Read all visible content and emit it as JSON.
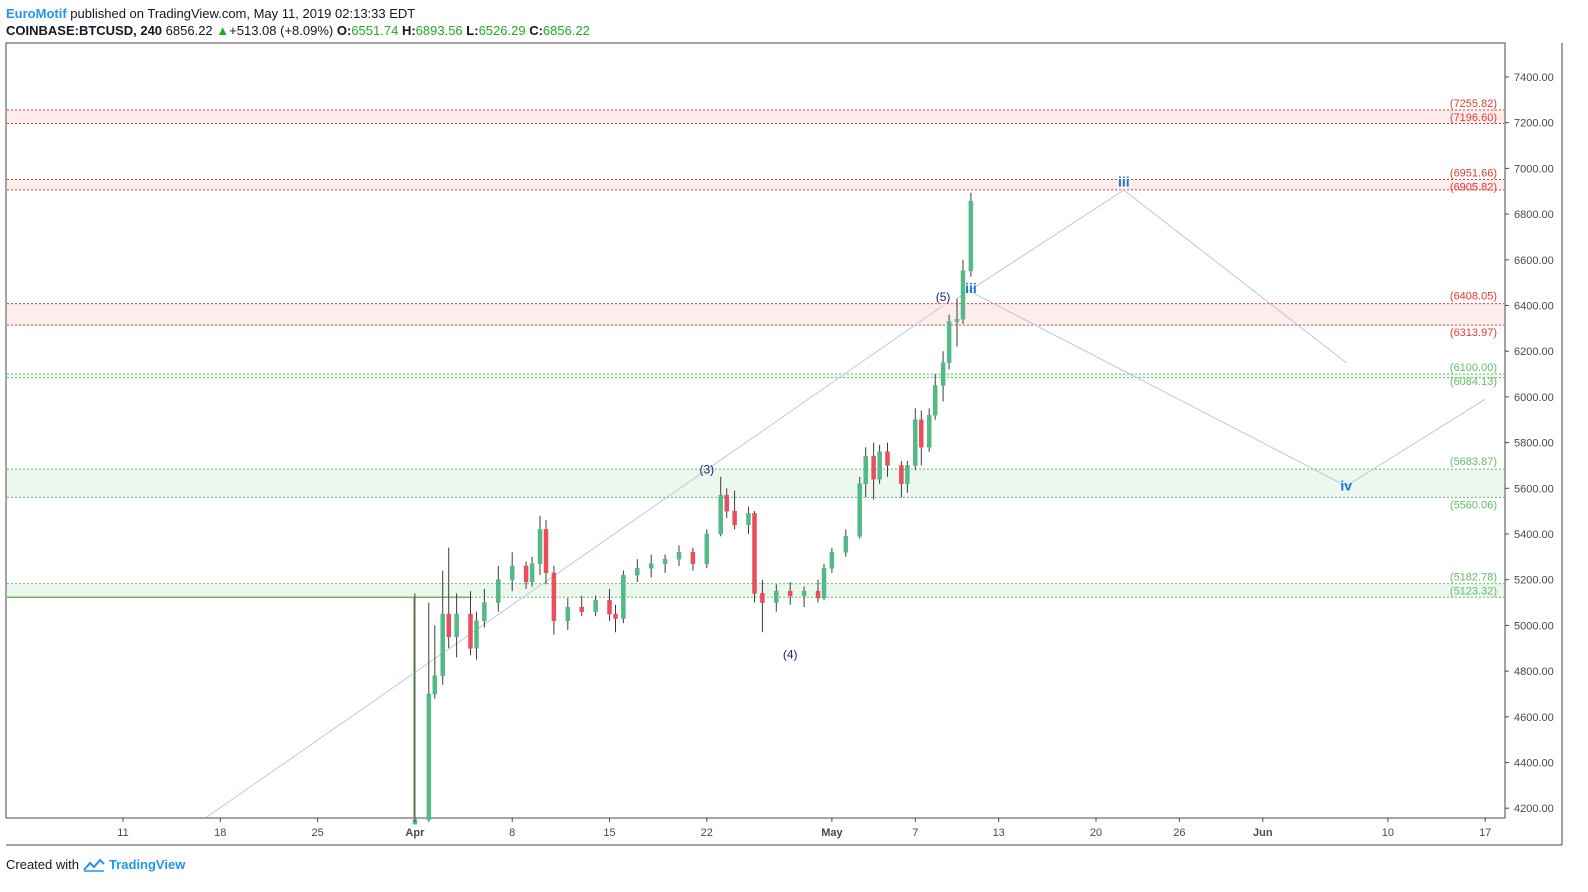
{
  "header": {
    "author": "EuroMotif",
    "published_text": "published on TradingView.com, May 11, 2019 02:13:33 EDT"
  },
  "quote": {
    "symbol": "COINBASE:BTCUSD, 240",
    "last": "6856.22",
    "change": "+513.08 (+8.09%)",
    "o_label": "O:",
    "o": "6551.74",
    "h_label": "H:",
    "h": "6893.56",
    "l_label": "L:",
    "l": "6526.29",
    "c_label": "C:",
    "c": "6856.22"
  },
  "footer": {
    "created_with": "Created with",
    "logo": "TradingView"
  },
  "colors": {
    "up": "#53b987",
    "down": "#eb4d5c",
    "resistance": "#e53935",
    "support": "#66bb6a",
    "wave_minor": "#1a237e",
    "wave_major": "#1976d2",
    "projection": "#b7c9e0"
  },
  "chart_data": {
    "type": "candlestick",
    "symbol": "COINBASE:BTCUSD",
    "interval": "240",
    "xaxis_ticks": [
      "11",
      "18",
      "25",
      "Apr",
      "8",
      "15",
      "22",
      "May",
      "7",
      "13",
      "20",
      "26",
      "Jun",
      "10",
      "17"
    ],
    "yaxis_ticks": [
      "7400.00",
      "7200.00",
      "7000.00",
      "6800.00",
      "6600.00",
      "6400.00",
      "6200.00",
      "6000.00",
      "5800.00",
      "5600.00",
      "5400.00",
      "5200.00",
      "5000.00",
      "4800.00",
      "4600.00",
      "4400.00",
      "4200.00"
    ],
    "ylim": [
      4160,
      7560
    ],
    "resistance_zones": [
      {
        "top": 7255.82,
        "bottom": 7196.6,
        "labels": [
          "(7255.82)",
          "(7196.60)"
        ]
      },
      {
        "top": 6951.66,
        "bottom": 6905.82,
        "labels": [
          "(6951.66)",
          "(6905.82)"
        ]
      },
      {
        "top": 6408.05,
        "bottom": 6313.97,
        "labels": [
          "(6408.05)",
          "(6313.97)"
        ]
      }
    ],
    "support_zones": [
      {
        "top": 6100.0,
        "bottom": 6084.13,
        "labels": [
          "(6100.00)",
          "(6084.13)"
        ]
      },
      {
        "top": 5683.87,
        "bottom": 5560.06,
        "labels": [
          "(5683.87)",
          "(5560.06)"
        ]
      },
      {
        "top": 5182.78,
        "bottom": 5123.32,
        "labels": [
          "(5182.78)",
          "(5123.32)"
        ]
      }
    ],
    "wave_labels_minor": [
      {
        "text": "(3)",
        "date": "2019-04-22",
        "price": 5665
      },
      {
        "text": "(4)",
        "date": "2019-04-28",
        "price": 4855
      },
      {
        "text": "(5)",
        "date": "2019-05-09",
        "price": 6420
      }
    ],
    "wave_labels_major": [
      {
        "text": "iii",
        "date": "2019-05-11",
        "price": 6455
      },
      {
        "text": "iii",
        "date": "2019-05-22",
        "price": 6920
      },
      {
        "text": "iv",
        "date": "2019-06-07",
        "price": 5590
      }
    ],
    "projection_path": [
      {
        "date": "2019-05-10",
        "price": 6430
      },
      {
        "date": "2019-05-22",
        "price": 6905
      },
      {
        "date": "2019-06-07",
        "price": 6150
      }
    ],
    "projection_path_2": [
      {
        "date": "2019-05-11",
        "price": 6460
      },
      {
        "date": "2019-06-07",
        "price": 5610
      },
      {
        "date": "2019-06-17",
        "price": 5990
      }
    ],
    "channel_line": [
      {
        "date": "2019-03-17",
        "price": 4160
      },
      {
        "date": "2019-05-09",
        "price": 6400
      }
    ],
    "candles": [
      {
        "date": "2019-04-01",
        "open": 4130,
        "high": 5140,
        "low": 4130,
        "close": 4150
      },
      {
        "date": "2019-04-02",
        "open": 4150,
        "high": 5100,
        "low": 4140,
        "close": 4700
      },
      {
        "date": "2019-04-02",
        "open": 4700,
        "high": 5000,
        "low": 4680,
        "close": 4780
      },
      {
        "date": "2019-04-03",
        "open": 4780,
        "high": 5240,
        "low": 4740,
        "close": 5050
      },
      {
        "date": "2019-04-03",
        "open": 5050,
        "high": 5340,
        "low": 4900,
        "close": 4950
      },
      {
        "date": "2019-04-04",
        "open": 4950,
        "high": 5140,
        "low": 4860,
        "close": 5050
      },
      {
        "date": "2019-04-05",
        "open": 5050,
        "high": 5150,
        "low": 4870,
        "close": 4900
      },
      {
        "date": "2019-04-05",
        "open": 4900,
        "high": 5060,
        "low": 4850,
        "close": 5020
      },
      {
        "date": "2019-04-06",
        "open": 5020,
        "high": 5160,
        "low": 4990,
        "close": 5100
      },
      {
        "date": "2019-04-07",
        "open": 5100,
        "high": 5260,
        "low": 5060,
        "close": 5200
      },
      {
        "date": "2019-04-08",
        "open": 5200,
        "high": 5320,
        "low": 5150,
        "close": 5260
      },
      {
        "date": "2019-04-09",
        "open": 5260,
        "high": 5280,
        "low": 5160,
        "close": 5190
      },
      {
        "date": "2019-04-09",
        "open": 5190,
        "high": 5300,
        "low": 5170,
        "close": 5270
      },
      {
        "date": "2019-04-10",
        "open": 5270,
        "high": 5480,
        "low": 5220,
        "close": 5420
      },
      {
        "date": "2019-04-10",
        "open": 5420,
        "high": 5460,
        "low": 5180,
        "close": 5230
      },
      {
        "date": "2019-04-11",
        "open": 5230,
        "high": 5260,
        "low": 4960,
        "close": 5020
      },
      {
        "date": "2019-04-12",
        "open": 5020,
        "high": 5120,
        "low": 4980,
        "close": 5080
      },
      {
        "date": "2019-04-13",
        "open": 5080,
        "high": 5130,
        "low": 5040,
        "close": 5060
      },
      {
        "date": "2019-04-14",
        "open": 5060,
        "high": 5130,
        "low": 5040,
        "close": 5110
      },
      {
        "date": "2019-04-15",
        "open": 5110,
        "high": 5160,
        "low": 5020,
        "close": 5050
      },
      {
        "date": "2019-04-15",
        "open": 5050,
        "high": 5090,
        "low": 4970,
        "close": 5030
      },
      {
        "date": "2019-04-16",
        "open": 5030,
        "high": 5240,
        "low": 5010,
        "close": 5220
      },
      {
        "date": "2019-04-17",
        "open": 5220,
        "high": 5290,
        "low": 5190,
        "close": 5250
      },
      {
        "date": "2019-04-18",
        "open": 5250,
        "high": 5310,
        "low": 5210,
        "close": 5270
      },
      {
        "date": "2019-04-19",
        "open": 5270,
        "high": 5310,
        "low": 5230,
        "close": 5290
      },
      {
        "date": "2019-04-20",
        "open": 5290,
        "high": 5350,
        "low": 5260,
        "close": 5320
      },
      {
        "date": "2019-04-21",
        "open": 5320,
        "high": 5340,
        "low": 5240,
        "close": 5270
      },
      {
        "date": "2019-04-22",
        "open": 5270,
        "high": 5420,
        "low": 5250,
        "close": 5400
      },
      {
        "date": "2019-04-23",
        "open": 5400,
        "high": 5650,
        "low": 5390,
        "close": 5570
      },
      {
        "date": "2019-04-23",
        "open": 5570,
        "high": 5600,
        "low": 5470,
        "close": 5500
      },
      {
        "date": "2019-04-24",
        "open": 5500,
        "high": 5590,
        "low": 5420,
        "close": 5440
      },
      {
        "date": "2019-04-25",
        "open": 5440,
        "high": 5520,
        "low": 5400,
        "close": 5490
      },
      {
        "date": "2019-04-25",
        "open": 5490,
        "high": 5500,
        "low": 5100,
        "close": 5140
      },
      {
        "date": "2019-04-26",
        "open": 5140,
        "high": 5200,
        "low": 4970,
        "close": 5100
      },
      {
        "date": "2019-04-27",
        "open": 5100,
        "high": 5180,
        "low": 5060,
        "close": 5150
      },
      {
        "date": "2019-04-28",
        "open": 5150,
        "high": 5190,
        "low": 5090,
        "close": 5130
      },
      {
        "date": "2019-04-29",
        "open": 5130,
        "high": 5170,
        "low": 5080,
        "close": 5150
      },
      {
        "date": "2019-04-30",
        "open": 5150,
        "high": 5200,
        "low": 5100,
        "close": 5120
      },
      {
        "date": "2019-04-30",
        "open": 5120,
        "high": 5270,
        "low": 5110,
        "close": 5250
      },
      {
        "date": "2019-05-01",
        "open": 5250,
        "high": 5340,
        "low": 5230,
        "close": 5320
      },
      {
        "date": "2019-05-02",
        "open": 5320,
        "high": 5420,
        "low": 5300,
        "close": 5390
      },
      {
        "date": "2019-05-03",
        "open": 5390,
        "high": 5650,
        "low": 5380,
        "close": 5620
      },
      {
        "date": "2019-05-03",
        "open": 5620,
        "high": 5780,
        "low": 5560,
        "close": 5740
      },
      {
        "date": "2019-05-04",
        "open": 5740,
        "high": 5800,
        "low": 5550,
        "close": 5640
      },
      {
        "date": "2019-05-04",
        "open": 5640,
        "high": 5790,
        "low": 5620,
        "close": 5760
      },
      {
        "date": "2019-05-05",
        "open": 5760,
        "high": 5800,
        "low": 5650,
        "close": 5700
      },
      {
        "date": "2019-05-06",
        "open": 5700,
        "high": 5720,
        "low": 5560,
        "close": 5620
      },
      {
        "date": "2019-05-06",
        "open": 5620,
        "high": 5720,
        "low": 5580,
        "close": 5700
      },
      {
        "date": "2019-05-07",
        "open": 5700,
        "high": 5950,
        "low": 5680,
        "close": 5900
      },
      {
        "date": "2019-05-07",
        "open": 5900,
        "high": 5940,
        "low": 5700,
        "close": 5780
      },
      {
        "date": "2019-05-08",
        "open": 5780,
        "high": 5950,
        "low": 5760,
        "close": 5920
      },
      {
        "date": "2019-05-08",
        "open": 5920,
        "high": 6100,
        "low": 5900,
        "close": 6050
      },
      {
        "date": "2019-05-09",
        "open": 6050,
        "high": 6200,
        "low": 5980,
        "close": 6150
      },
      {
        "date": "2019-05-09",
        "open": 6150,
        "high": 6360,
        "low": 6120,
        "close": 6330
      },
      {
        "date": "2019-05-10",
        "open": 6330,
        "high": 6430,
        "low": 6220,
        "close": 6340
      },
      {
        "date": "2019-05-10",
        "open": 6340,
        "high": 6600,
        "low": 6320,
        "close": 6552
      },
      {
        "date": "2019-05-11",
        "open": 6551.74,
        "high": 6893.56,
        "low": 6526.29,
        "close": 6856.22
      }
    ]
  }
}
